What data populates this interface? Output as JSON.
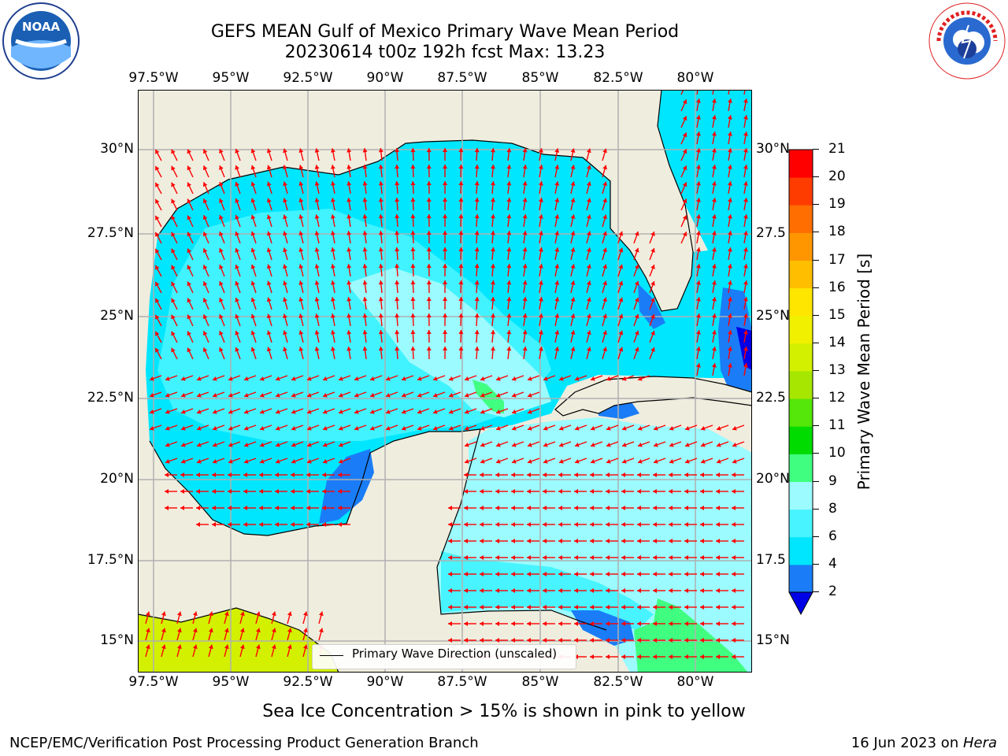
{
  "title": {
    "line1": "GEFS MEAN Gulf of Mexico Primary Wave Mean Period",
    "line2": "20230614 t00z 192h fcst   Max: 13.23"
  },
  "logos": {
    "left": {
      "name": "noaa-logo",
      "text": "NOAA"
    },
    "right": {
      "name": "nws-logo",
      "text": "NATIONAL WEATHER SERVICE"
    }
  },
  "map": {
    "lon_labels": [
      "97.5°W",
      "95°W",
      "92.5°W",
      "90°W",
      "87.5°W",
      "85°W",
      "82.5°W",
      "80°W"
    ],
    "lat_labels": [
      "30°N",
      "27.5°N",
      "25°N",
      "22.5°N",
      "20°N",
      "17.5°N",
      "15°N"
    ],
    "right_lat_labels": [
      "30°N",
      "27.5",
      "25°N",
      "22.5",
      "20°N",
      "17.5",
      "15°N"
    ],
    "legend_label": "Primary Wave Direction (unscaled)",
    "arrow_color": "#ff0000",
    "land_color": "#efedde"
  },
  "colorbar": {
    "label": "Primary Wave Mean Period [s]",
    "ticks": [
      "2",
      "4",
      "6",
      "8",
      "9",
      "10",
      "11",
      "12",
      "13",
      "14",
      "15",
      "16",
      "17",
      "18",
      "19",
      "20",
      "21"
    ],
    "colors": [
      "#1a7df7",
      "#00e6ff",
      "#47f4ff",
      "#9bfbff",
      "#40ff80",
      "#00dc00",
      "#55e60a",
      "#a6e600",
      "#d2f000",
      "#f0f000",
      "#ffe600",
      "#ffbe00",
      "#ff9600",
      "#ff6e00",
      "#ff3c00",
      "#ff0000"
    ],
    "extend_color": "#0000e6"
  },
  "note": "Sea Ice Concentration > 15% is shown in pink to yellow",
  "footer": {
    "left": "NCEP/EMC/Verification Post Processing Product Generation Branch",
    "right_date": "16 Jun 2023 on ",
    "right_machine": "Hera"
  }
}
